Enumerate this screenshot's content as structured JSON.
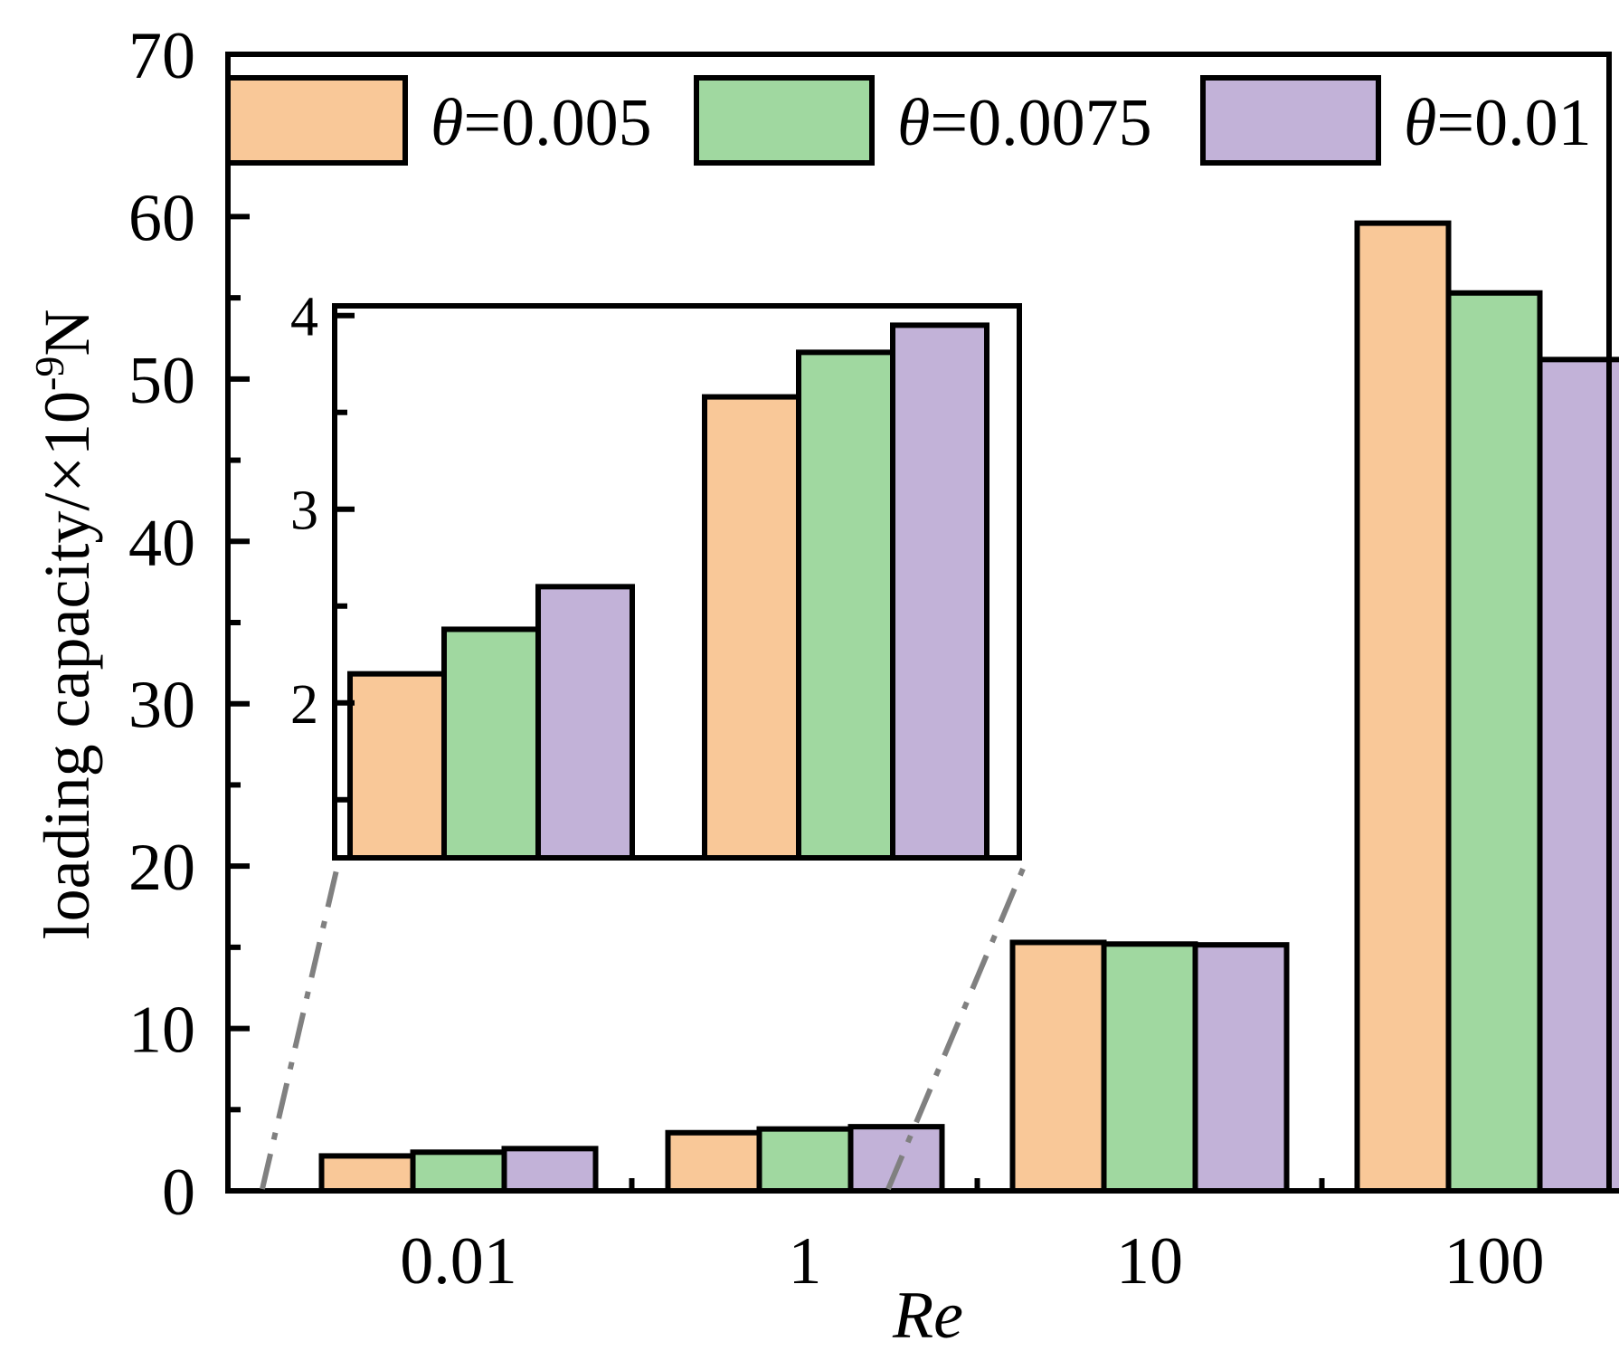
{
  "chart_data": {
    "type": "bar",
    "xlabel": "Re",
    "ylabel_main": "loading capacity/×10",
    "ylabel_exp": "-9",
    "ylabel_unit": "N",
    "ylim": [
      0,
      70
    ],
    "yticks": [
      0,
      10,
      20,
      30,
      40,
      50,
      60,
      70
    ],
    "categories": [
      "0.01",
      "1",
      "10",
      "100"
    ],
    "colors": [
      "#F9C898",
      "#A0D8A0",
      "#C2B2D8"
    ],
    "series": [
      {
        "symbol": "θ",
        "value_text": "=0.005",
        "values": [
          2.15,
          3.58,
          15.3,
          59.6
        ]
      },
      {
        "symbol": "θ",
        "value_text": "=0.0075",
        "values": [
          2.38,
          3.81,
          15.2,
          55.3
        ]
      },
      {
        "symbol": "θ",
        "value_text": "=0.01",
        "values": [
          2.6,
          3.95,
          15.15,
          51.2
        ]
      }
    ],
    "legend_position": "top",
    "grid": false,
    "inset": {
      "categories": [
        "0.01",
        "1"
      ],
      "ylim": [
        1.2,
        4.05
      ],
      "yticks": [
        2,
        3,
        4
      ]
    }
  }
}
